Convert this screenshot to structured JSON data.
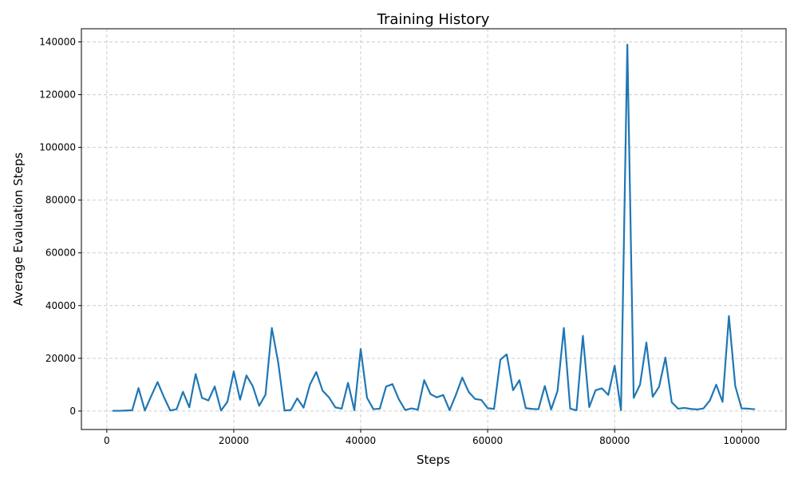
{
  "chart_data": {
    "type": "line",
    "title": "Training History",
    "xlabel": "Steps",
    "ylabel": "Average Evaluation Steps",
    "xlim": [
      -4000,
      107000
    ],
    "ylim": [
      -7000,
      145000
    ],
    "xticks": [
      0,
      20000,
      40000,
      60000,
      80000,
      100000
    ],
    "yticks": [
      0,
      20000,
      40000,
      60000,
      80000,
      100000,
      120000,
      140000
    ],
    "grid": true,
    "color": "#1f77b4",
    "series": [
      {
        "x": [
          1000,
          2000,
          3000,
          4000,
          5000,
          6000,
          7000,
          8000,
          9000,
          10000,
          11000,
          12000,
          13000,
          14000,
          15000,
          16000,
          17000,
          18000,
          19000,
          20000,
          21000,
          22000,
          23000,
          24000,
          25000,
          26000,
          27000,
          28000,
          29000,
          30000,
          31000,
          32000,
          33000,
          34000,
          35000,
          36000,
          37000,
          38000,
          39000,
          40000,
          41000,
          42000,
          43000,
          44000,
          45000,
          46000,
          47000,
          48000,
          49000,
          50000,
          51000,
          52000,
          53000,
          54000,
          55000,
          56000,
          57000,
          58000,
          59000,
          60000,
          61000,
          62000,
          63000,
          64000,
          65000,
          66000,
          67000,
          68000,
          69000,
          70000,
          71000,
          72000,
          73000,
          74000,
          75000,
          76000,
          77000,
          78000,
          79000,
          80000,
          81000,
          82000,
          83000,
          84000,
          85000,
          86000,
          87000,
          88000,
          89000,
          90000,
          91000,
          92000,
          93000,
          94000,
          95000,
          96000,
          97000,
          98000,
          99000,
          100000,
          101000,
          102000
        ],
        "values": [
          100,
          100,
          200,
          300,
          8700,
          200,
          5700,
          11000,
          5300,
          200,
          700,
          7300,
          1400,
          14000,
          5000,
          4000,
          9300,
          200,
          3500,
          15000,
          4300,
          13500,
          9400,
          2000,
          6200,
          31500,
          18500,
          200,
          400,
          4800,
          1300,
          10000,
          14800,
          7700,
          5200,
          1400,
          900,
          10700,
          300,
          23500,
          5000,
          700,
          900,
          9300,
          10200,
          4500,
          400,
          1000,
          500,
          11700,
          6400,
          5200,
          6100,
          300,
          6200,
          12700,
          7300,
          4600,
          4200,
          1100,
          800,
          19500,
          21500,
          7900,
          11700,
          1100,
          800,
          700,
          9500,
          600,
          7600,
          31500,
          900,
          300,
          28500,
          1500,
          7900,
          8600,
          6100,
          17200,
          300,
          139000,
          5000,
          10000,
          26000,
          5400,
          9200,
          20300,
          3300,
          900,
          1200,
          800,
          600,
          1000,
          4000,
          10000,
          3500,
          36000,
          9500,
          1000,
          900,
          700
        ]
      }
    ]
  }
}
